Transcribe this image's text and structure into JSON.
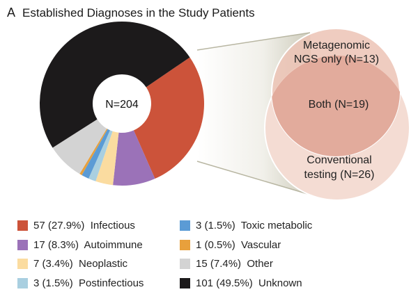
{
  "chart_data": {
    "type": "pie",
    "panel_label": "A",
    "title": "Established Diagnoses in the Study Patients",
    "center_label": "N=204",
    "total": 204,
    "slices": [
      {
        "label": "Infectious",
        "count": 57,
        "percent": 27.9,
        "legend": "57 (27.9%)  Infectious",
        "color": "#cc533a"
      },
      {
        "label": "Autoimmune",
        "count": 17,
        "percent": 8.3,
        "legend": "17 (8.3%)  Autoimmune",
        "color": "#9b72b8"
      },
      {
        "label": "Neoplastic",
        "count": 7,
        "percent": 3.4,
        "legend": "7 (3.4%)  Neoplastic",
        "color": "#fbdca0"
      },
      {
        "label": "Postinfectious",
        "count": 3,
        "percent": 1.5,
        "legend": "3 (1.5%)  Postinfectious",
        "color": "#a9cfe0"
      },
      {
        "label": "Toxic metabolic",
        "count": 3,
        "percent": 1.5,
        "legend": "3 (1.5%)  Toxic metabolic",
        "color": "#5b9bd5"
      },
      {
        "label": "Vascular",
        "count": 1,
        "percent": 0.5,
        "legend": "1 (0.5%)  Vascular",
        "color": "#e8a03c"
      },
      {
        "label": "Other",
        "count": 15,
        "percent": 7.4,
        "legend": "15 (7.4%)  Other",
        "color": "#d3d3d3"
      },
      {
        "label": "Unknown",
        "count": 101,
        "percent": 49.5,
        "legend": "101 (49.5%)  Unknown",
        "color": "#1c1a1b"
      }
    ],
    "venn": {
      "top": {
        "label1": "Metagenomic",
        "label2": "NGS only (N=13)",
        "count": 13
      },
      "both": {
        "label": "Both (N=19)",
        "count": 19
      },
      "bottom": {
        "label1": "Conventional",
        "label2": "testing (N=26)",
        "count": 26
      }
    }
  }
}
